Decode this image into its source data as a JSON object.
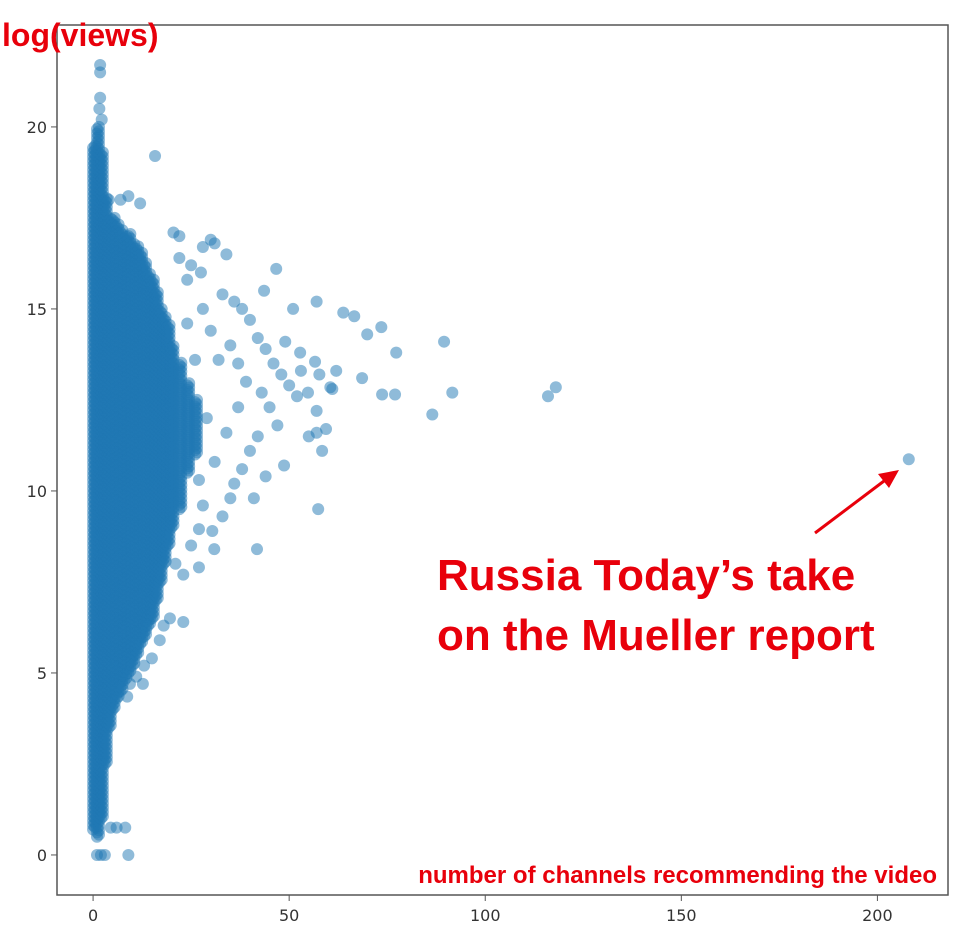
{
  "chart_data": {
    "type": "scatter",
    "title": "",
    "ylabel": "log(views)",
    "xlabel": "number of channels recommending the video",
    "xlim": [
      -9.2,
      218
    ],
    "ylim": [
      -1.1,
      22.8
    ],
    "xticks": [
      0,
      50,
      100,
      150,
      200
    ],
    "yticks": [
      0,
      5,
      10,
      15,
      20
    ],
    "grid": false,
    "marker_color": "#1f77b4",
    "marker_alpha": 0.5,
    "annotation_color": "#e8000b",
    "annotation": {
      "lines": [
        "Russia Today’s take",
        "on the Mueller report"
      ],
      "target": [
        208,
        10.87
      ]
    },
    "dense_ranges": [
      [
        0,
        0.7,
        19.5
      ],
      [
        1,
        0.5,
        20.0
      ],
      [
        2,
        1.0,
        19.3
      ],
      [
        3,
        2.5,
        18.0
      ],
      [
        4,
        3.5,
        17.5
      ],
      [
        5,
        4.0,
        17.5
      ],
      [
        6,
        4.3,
        17.3
      ],
      [
        7,
        4.5,
        17.2
      ],
      [
        8,
        4.8,
        17.0
      ],
      [
        9,
        5.0,
        17.0
      ],
      [
        10,
        5.2,
        16.8
      ],
      [
        11,
        5.5,
        16.7
      ],
      [
        12,
        5.8,
        16.5
      ],
      [
        13,
        6.0,
        16.3
      ],
      [
        14,
        6.3,
        16.0
      ],
      [
        15,
        6.5,
        15.8
      ],
      [
        16,
        7.0,
        15.5
      ],
      [
        17,
        7.5,
        15.0
      ],
      [
        18,
        8.0,
        14.8
      ],
      [
        19,
        8.5,
        14.5
      ],
      [
        20,
        9.0,
        14.0
      ],
      [
        22,
        9.5,
        13.5
      ],
      [
        24,
        10.5,
        13.0
      ],
      [
        26,
        11.0,
        12.5
      ]
    ],
    "points": [
      [
        208,
        10.87
      ],
      [
        118,
        12.85
      ],
      [
        116,
        12.6
      ],
      [
        89.5,
        14.1
      ],
      [
        91.6,
        12.7
      ],
      [
        86.5,
        12.1
      ],
      [
        77.3,
        13.8
      ],
      [
        73.7,
        12.65
      ],
      [
        77,
        12.65
      ],
      [
        68.6,
        13.1
      ],
      [
        73.5,
        14.5
      ],
      [
        69.9,
        14.3
      ],
      [
        66.6,
        14.8
      ],
      [
        63.8,
        14.9
      ],
      [
        57,
        15.2
      ],
      [
        51,
        15
      ],
      [
        46.7,
        16.1
      ],
      [
        43.6,
        15.5
      ],
      [
        15.8,
        19.2
      ],
      [
        57.7,
        13.2
      ],
      [
        57,
        12.2
      ],
      [
        57.4,
        9.5
      ],
      [
        41.8,
        8.4
      ],
      [
        57,
        11.6
      ],
      [
        59.4,
        11.7
      ],
      [
        58.4,
        11.1
      ],
      [
        48.7,
        10.7
      ],
      [
        60.5,
        12.85
      ],
      [
        54.8,
        12.7
      ],
      [
        52.8,
        13.8
      ],
      [
        56.6,
        13.55
      ],
      [
        30.9,
        8.4
      ],
      [
        30.4,
        8.9
      ],
      [
        27,
        8.95
      ],
      [
        19.6,
        6.5
      ],
      [
        23,
        6.4
      ],
      [
        9.4,
        4.7
      ],
      [
        12.7,
        4.7
      ],
      [
        8.7,
        4.35
      ],
      [
        8.2,
        0.75
      ],
      [
        6,
        0.75
      ],
      [
        4.5,
        0.75
      ],
      [
        9,
        0
      ],
      [
        1,
        0
      ],
      [
        2,
        0
      ],
      [
        3,
        0
      ],
      [
        1.8,
        21.7
      ],
      [
        1.8,
        21.5
      ],
      [
        1.8,
        20.8
      ],
      [
        1.6,
        20.5
      ],
      [
        2.2,
        20.2
      ],
      [
        4,
        18
      ],
      [
        7,
        18
      ],
      [
        9,
        18.1
      ],
      [
        12,
        17.9
      ],
      [
        20.5,
        17.1
      ],
      [
        22,
        17
      ],
      [
        28,
        16.7
      ],
      [
        30,
        16.9
      ],
      [
        31,
        16.8
      ],
      [
        34,
        16.5
      ],
      [
        25,
        16.2
      ],
      [
        27.5,
        16
      ],
      [
        36,
        15.2
      ],
      [
        38,
        15
      ],
      [
        40,
        14.7
      ],
      [
        42,
        14.2
      ],
      [
        44,
        13.9
      ],
      [
        46,
        13.5
      ],
      [
        48,
        13.2
      ],
      [
        50,
        12.9
      ],
      [
        52,
        12.6
      ],
      [
        45,
        12.3
      ],
      [
        47,
        11.8
      ],
      [
        42,
        11.5
      ],
      [
        40,
        11.1
      ],
      [
        38,
        10.6
      ],
      [
        36,
        10.2
      ],
      [
        35,
        9.8
      ],
      [
        41,
        9.8
      ],
      [
        33,
        9.3
      ],
      [
        28,
        9.6
      ],
      [
        27,
        10.3
      ],
      [
        31,
        10.8
      ],
      [
        34,
        11.6
      ],
      [
        37,
        12.3
      ],
      [
        39,
        13
      ],
      [
        32,
        13.6
      ],
      [
        35,
        14
      ],
      [
        30,
        14.4
      ],
      [
        28,
        15
      ],
      [
        33,
        15.4
      ],
      [
        24,
        15.8
      ],
      [
        22,
        16.4
      ],
      [
        37,
        13.5
      ],
      [
        43,
        12.7
      ],
      [
        49,
        14.1
      ],
      [
        53,
        13.3
      ],
      [
        61,
        12.8
      ],
      [
        62,
        13.3
      ],
      [
        55,
        11.5
      ],
      [
        44,
        10.4
      ],
      [
        29,
        12
      ],
      [
        26,
        13.6
      ],
      [
        24,
        14.6
      ],
      [
        21,
        8
      ],
      [
        23,
        7.7
      ],
      [
        18,
        6.3
      ],
      [
        15,
        5.4
      ],
      [
        13,
        5.2
      ],
      [
        11,
        4.9
      ],
      [
        17,
        5.9
      ],
      [
        25,
        8.5
      ],
      [
        27,
        7.9
      ]
    ]
  }
}
